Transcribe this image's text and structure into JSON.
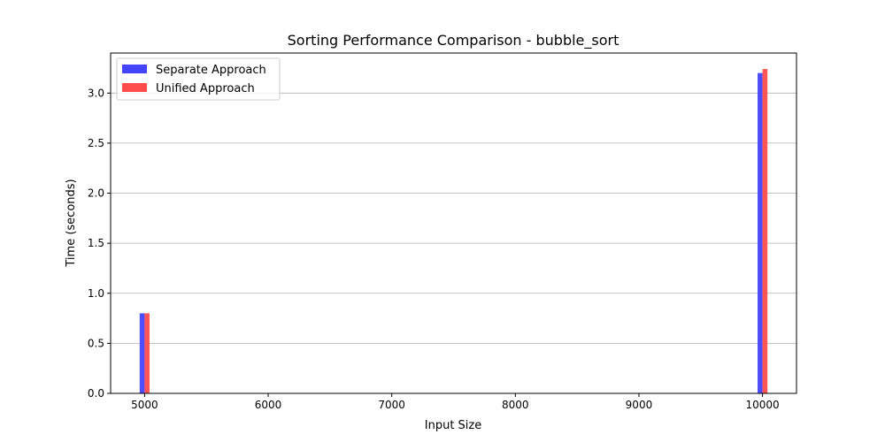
{
  "chart_data": {
    "type": "bar",
    "title": "Sorting Performance Comparison - bubble_sort",
    "xlabel": "Input Size",
    "ylabel": "Time (seconds)",
    "xlim": [
      4725,
      10275
    ],
    "ylim": [
      0,
      3.4
    ],
    "x_ticks": [
      5000,
      6000,
      7000,
      8000,
      9000,
      10000
    ],
    "y_ticks": [
      0.0,
      0.5,
      1.0,
      1.5,
      2.0,
      2.5,
      3.0
    ],
    "y_tick_labels": [
      "0.0",
      "0.5",
      "1.0",
      "1.5",
      "2.0",
      "2.5",
      "3.0"
    ],
    "x": [
      5000,
      10000
    ],
    "series": [
      {
        "name": "Separate Approach",
        "values": [
          0.8,
          3.2
        ],
        "color": "#4444ff"
      },
      {
        "name": "Unified Approach",
        "values": [
          0.8,
          3.24
        ],
        "color": "#ff4c4c"
      }
    ],
    "grid": "horizontal",
    "legend_position": "top-left"
  }
}
